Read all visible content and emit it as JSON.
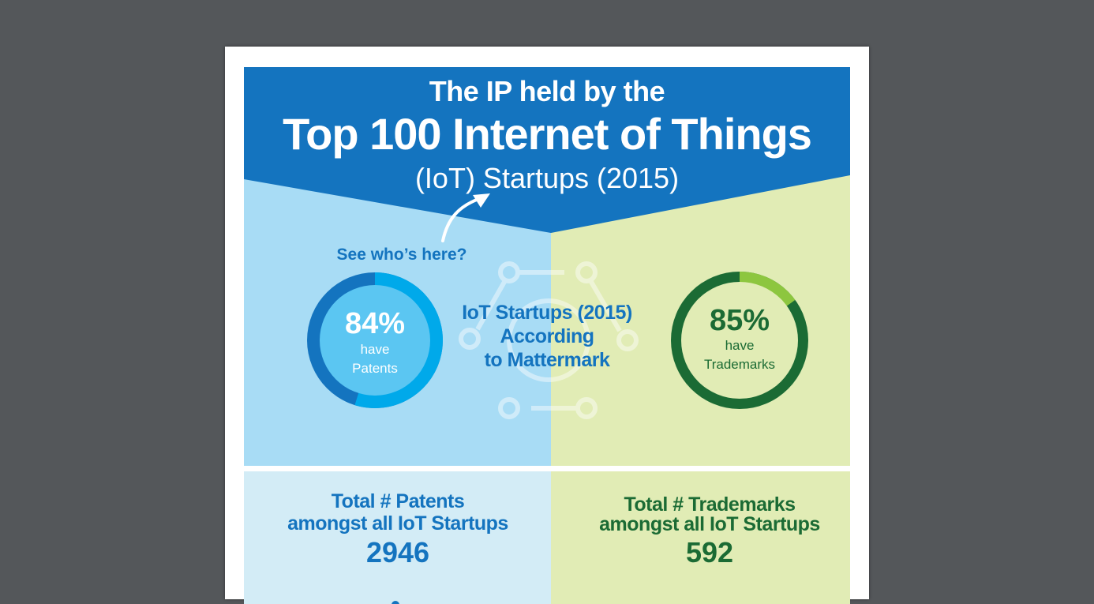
{
  "title": {
    "line1": "The IP held by the",
    "line2": "Top 100 Internet of Things",
    "line3": "(IoT) Startups (2015)"
  },
  "callout": "See who’s here?",
  "center": {
    "line1": "IoT Startups (2015)",
    "line2": "According",
    "line3": "to Mattermark"
  },
  "patents": {
    "percent_value": 84,
    "percent_label": "84%",
    "have": "have",
    "label": "Patents",
    "total_line1": "Total # Patents",
    "total_line2": "amongst all IoT Startups",
    "total": "2946"
  },
  "trademarks": {
    "percent_value": 85,
    "percent_label": "85%",
    "have": "have",
    "label": "Trademarks",
    "total_line1": "Total # Trademarks",
    "total_line2": "amongst all IoT Startups",
    "total": "592"
  },
  "colors": {
    "header_blue": "#1474bf",
    "light_blue": "#a8dcf5",
    "light_green": "#e1ecb5",
    "ring_blue_dark": "#1474bf",
    "ring_blue_light": "#00a9ea",
    "ring_green_dark": "#1b6b34",
    "ring_green_light": "#8dc63f",
    "text_green": "#1b6b34"
  }
}
